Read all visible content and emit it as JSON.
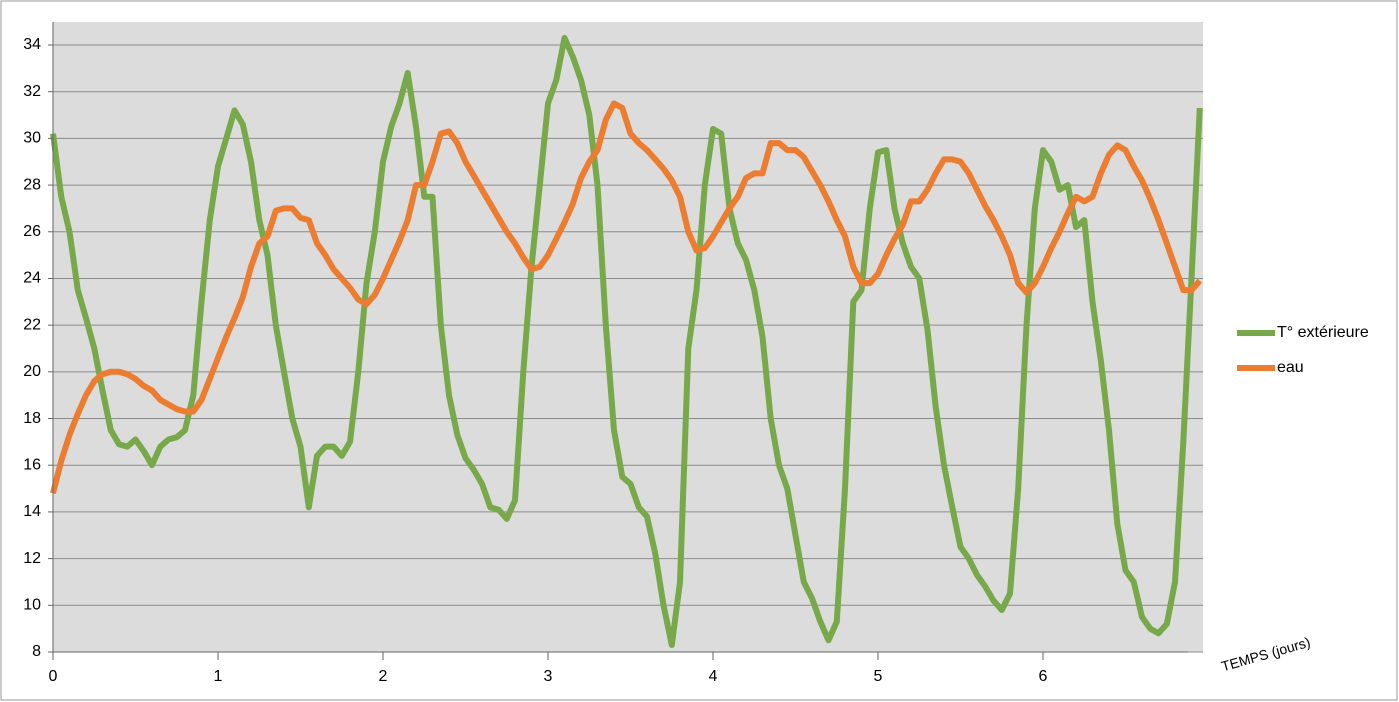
{
  "chart_data": {
    "type": "line",
    "x_axis_label": "TEMPS (jours)",
    "x": [
      0,
      0.05,
      0.1,
      0.15,
      0.2,
      0.25,
      0.3,
      0.35,
      0.4,
      0.45,
      0.5,
      0.55,
      0.6,
      0.65,
      0.7,
      0.75,
      0.8,
      0.85,
      0.9,
      0.95,
      1,
      1.05,
      1.1,
      1.15,
      1.2,
      1.25,
      1.3,
      1.35,
      1.4,
      1.45,
      1.5,
      1.55,
      1.6,
      1.65,
      1.7,
      1.75,
      1.8,
      1.85,
      1.9,
      1.95,
      2,
      2.05,
      2.1,
      2.15,
      2.2,
      2.25,
      2.3,
      2.35,
      2.4,
      2.45,
      2.5,
      2.55,
      2.6,
      2.65,
      2.7,
      2.75,
      2.8,
      2.85,
      2.9,
      2.95,
      3,
      3.05,
      3.1,
      3.15,
      3.2,
      3.25,
      3.3,
      3.35,
      3.4,
      3.45,
      3.5,
      3.55,
      3.6,
      3.65,
      3.7,
      3.75,
      3.8,
      3.85,
      3.9,
      3.95,
      4,
      4.05,
      4.1,
      4.15,
      4.2,
      4.25,
      4.3,
      4.35,
      4.4,
      4.45,
      4.5,
      4.55,
      4.6,
      4.65,
      4.7,
      4.75,
      4.8,
      4.85,
      4.9,
      4.95,
      5,
      5.05,
      5.1,
      5.15,
      5.2,
      5.25,
      5.3,
      5.35,
      5.4,
      5.45,
      5.5,
      5.55,
      5.6,
      5.65,
      5.7,
      5.75,
      5.8,
      5.85,
      5.9,
      5.95,
      6,
      6.05,
      6.1,
      6.15,
      6.2,
      6.25,
      6.3,
      6.35,
      6.4,
      6.45,
      6.5,
      6.55,
      6.6,
      6.65,
      6.7,
      6.75,
      6.8,
      6.85,
      6.9,
      6.95
    ],
    "series": [
      {
        "name": "T° extérieure",
        "color": "#77a94a",
        "values": [
          30.2,
          27.5,
          26,
          23.5,
          22.3,
          21,
          19.2,
          17.5,
          16.9,
          16.8,
          17.1,
          16.6,
          16,
          16.8,
          17.1,
          17.2,
          17.5,
          19,
          23,
          26.5,
          28.8,
          30,
          31.2,
          30.6,
          29,
          26.5,
          25,
          22,
          20,
          18,
          16.8,
          14.2,
          16.4,
          16.8,
          16.8,
          16.4,
          17,
          20,
          23.8,
          26,
          29,
          30.5,
          31.5,
          32.8,
          30.5,
          27.5,
          27.5,
          22,
          19,
          17.3,
          16.3,
          15.8,
          15.2,
          14.2,
          14.1,
          13.7,
          14.5,
          20,
          24.5,
          28,
          31.5,
          32.5,
          34.3,
          33.5,
          32.5,
          31,
          28,
          22,
          17.5,
          15.5,
          15.2,
          14.2,
          13.8,
          12.2,
          10,
          8.3,
          11,
          21,
          23.5,
          28,
          30.4,
          30.2,
          27,
          25.5,
          24.8,
          23.5,
          21.5,
          18,
          16,
          15,
          13,
          11,
          10.3,
          9.3,
          8.5,
          9.3,
          15,
          23,
          23.5,
          27,
          29.4,
          29.5,
          27,
          25.5,
          24.5,
          24,
          21.8,
          18.5,
          16,
          14.2,
          12.5,
          12,
          11.3,
          10.8,
          10.2,
          9.8,
          10.5,
          15,
          22,
          27,
          29.5,
          29,
          27.8,
          28,
          26.2,
          26.5,
          23,
          20.5,
          17.5,
          13.5,
          11.5,
          11,
          9.5,
          9,
          8.8,
          9.2,
          11,
          17,
          24,
          31.3
        ]
      },
      {
        "name": "eau",
        "color": "#ec7c30",
        "values": [
          14.8,
          16.2,
          17.3,
          18.2,
          19,
          19.6,
          19.9,
          20,
          20,
          19.9,
          19.7,
          19.4,
          19.2,
          18.8,
          18.6,
          18.4,
          18.3,
          18.3,
          18.8,
          19.7,
          20.6,
          21.5,
          22.3,
          23.2,
          24.5,
          25.5,
          25.8,
          26.9,
          27,
          27,
          26.6,
          26.5,
          25.5,
          25,
          24.4,
          24,
          23.6,
          23.1,
          22.9,
          23.3,
          24,
          24.8,
          25.6,
          26.5,
          28,
          28,
          29,
          30.2,
          30.3,
          29.8,
          29,
          28.4,
          27.8,
          27.2,
          26.6,
          26,
          25.5,
          24.9,
          24.4,
          24.5,
          25,
          25.7,
          26.4,
          27.2,
          28.3,
          29,
          29.5,
          30.8,
          31.5,
          31.3,
          30.2,
          29.8,
          29.5,
          29.1,
          28.7,
          28.2,
          27.5,
          26,
          25.2,
          25.3,
          25.8,
          26.4,
          27,
          27.5,
          28.3,
          28.5,
          28.5,
          29.8,
          29.8,
          29.5,
          29.5,
          29.2,
          28.6,
          28,
          27.3,
          26.5,
          25.8,
          24.5,
          23.8,
          23.8,
          24.2,
          25,
          25.7,
          26.3,
          27.3,
          27.3,
          27.8,
          28.5,
          29.1,
          29.1,
          29,
          28.5,
          27.8,
          27.1,
          26.5,
          25.8,
          25,
          23.8,
          23.4,
          23.8,
          24.5,
          25.3,
          26,
          26.8,
          27.5,
          27.3,
          27.5,
          28.5,
          29.3,
          29.7,
          29.5,
          28.8,
          28.2,
          27.4,
          26.5,
          25.5,
          24.5,
          23.5,
          23.5,
          23.9
        ]
      }
    ],
    "xlim": [
      0,
      7
    ],
    "xticks": [
      0,
      1,
      2,
      3,
      4,
      5,
      6
    ],
    "ylim": [
      8,
      34
    ],
    "yticks": [
      8,
      10,
      12,
      14,
      16,
      18,
      20,
      22,
      24,
      26,
      28,
      30,
      32,
      34
    ],
    "grid": true,
    "legend": "right"
  }
}
